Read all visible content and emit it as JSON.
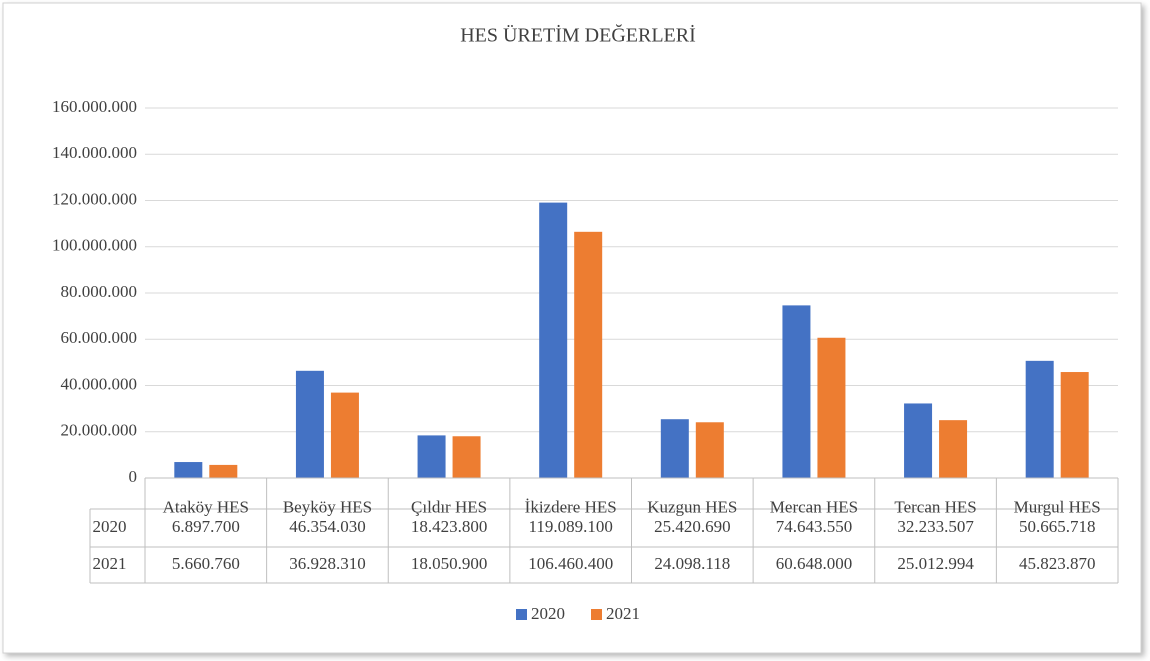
{
  "chart_data": {
    "type": "bar",
    "title": "HES ÜRETİM DEĞERLERİ",
    "categories": [
      "Ataköy HES",
      "Beyköy HES",
      "Çıldır HES",
      "İkizdere HES",
      "Kuzgun HES",
      "Mercan HES",
      "Tercan HES",
      "Murgul HES"
    ],
    "series": [
      {
        "name": "2020",
        "color": "#4472c4",
        "values": [
          6897700,
          46354030,
          18423800,
          119089100,
          25420690,
          74643550,
          32233507,
          50665718
        ],
        "value_labels": [
          "6.897.700",
          "46.354.030",
          "18.423.800",
          "119.089.100",
          "25.420.690",
          "74.643.550",
          "32.233.507",
          "50.665.718"
        ]
      },
      {
        "name": "2021",
        "color": "#ed7d31",
        "values": [
          5660760,
          36928310,
          18050900,
          106460400,
          24098118,
          60648000,
          25012994,
          45823870
        ],
        "value_labels": [
          "5.660.760",
          "36.928.310",
          "18.050.900",
          "106.460.400",
          "24.098.118",
          "60.648.000",
          "25.012.994",
          "45.823.870"
        ]
      }
    ],
    "ylim": [
      0,
      160000000
    ],
    "yticks": [
      0,
      {
        "value": 20000000,
        "label": "20.000.000"
      },
      {
        "value": 40000000,
        "label": "40.000.000"
      },
      {
        "value": 60000000,
        "label": "60.000.000"
      },
      {
        "value": 80000000,
        "label": "80.000.000"
      },
      {
        "value": 100000000,
        "label": "100.000.000"
      },
      {
        "value": 120000000,
        "label": "120.000.000"
      },
      {
        "value": 140000000,
        "label": "140.000.000"
      },
      {
        "value": 160000000,
        "label": "160.000.000"
      }
    ],
    "grid": true,
    "legend": "bottom",
    "data_table": true
  }
}
